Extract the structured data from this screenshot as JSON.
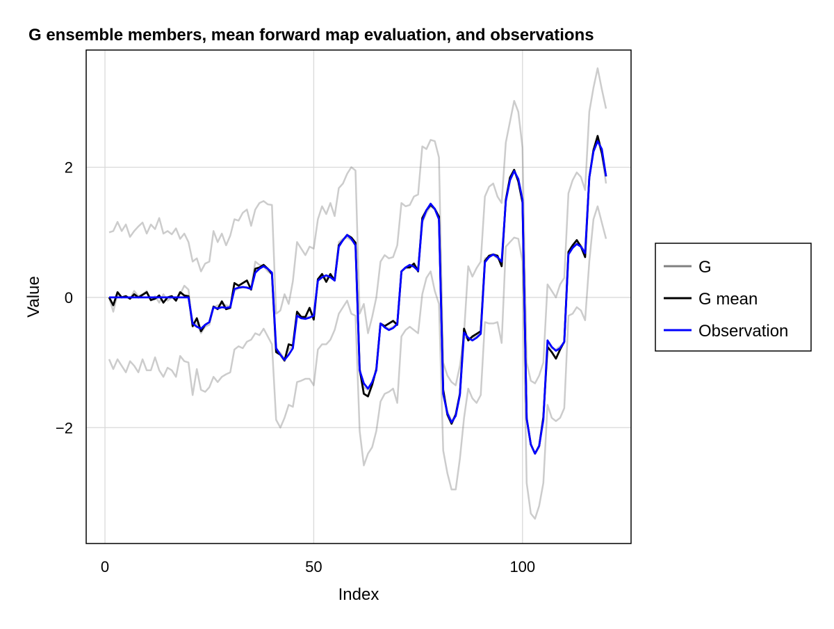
{
  "chart_data": {
    "type": "line",
    "title": "G ensemble members, mean forward map evaluation, and observations",
    "xlabel": "Index",
    "ylabel": "Value",
    "xlim": [
      -4.5,
      126
    ],
    "ylim": [
      -3.78,
      3.8
    ],
    "x_ticks": [
      0,
      50,
      100
    ],
    "y_ticks": [
      -2,
      0,
      2
    ],
    "x_tick_labels": [
      "0",
      "50",
      "100"
    ],
    "y_tick_labels": [
      "−2",
      "0",
      "2"
    ],
    "grid": true,
    "legend_position": "right",
    "legend": [
      {
        "label": "G",
        "color": "#808080"
      },
      {
        "label": "G mean",
        "color": "#000000"
      },
      {
        "label": "Observation",
        "color": "#0000ff"
      }
    ],
    "x": [
      1,
      2,
      3,
      4,
      5,
      6,
      7,
      8,
      9,
      10,
      11,
      12,
      13,
      14,
      15,
      16,
      17,
      18,
      19,
      20,
      21,
      22,
      23,
      24,
      25,
      26,
      27,
      28,
      29,
      30,
      31,
      32,
      33,
      34,
      35,
      36,
      37,
      38,
      39,
      40,
      41,
      42,
      43,
      44,
      45,
      46,
      47,
      48,
      49,
      50,
      51,
      52,
      53,
      54,
      55,
      56,
      57,
      58,
      59,
      60,
      61,
      62,
      63,
      64,
      65,
      66,
      67,
      68,
      69,
      70,
      71,
      72,
      73,
      74,
      75,
      76,
      77,
      78,
      79,
      80,
      81,
      82,
      83,
      84,
      85,
      86,
      87,
      88,
      89,
      90,
      91,
      92,
      93,
      94,
      95,
      96,
      97,
      98,
      99,
      100,
      101,
      102,
      103,
      104,
      105,
      106,
      107,
      108,
      109,
      110,
      111,
      112,
      113,
      114,
      115,
      116,
      117,
      118,
      119,
      120
    ],
    "series": [
      {
        "name": "G",
        "color": "#808080",
        "values": [
          1.0,
          1.02,
          1.16,
          1.02,
          1.12,
          0.93,
          1.02,
          1.09,
          1.15,
          0.98,
          1.12,
          1.05,
          1.22,
          0.98,
          1.02,
          0.97,
          1.06,
          0.9,
          0.98,
          0.85,
          0.55,
          0.6,
          0.4,
          0.52,
          0.55,
          1.02,
          0.85,
          0.98,
          0.8,
          0.95,
          1.2,
          1.18,
          1.3,
          1.35,
          1.1,
          1.35,
          1.45,
          1.48,
          1.43,
          1.42,
          -0.25,
          -0.2,
          0.05,
          -0.1,
          0.25,
          0.85,
          0.75,
          0.65,
          0.78,
          0.75,
          1.2,
          1.4,
          1.28,
          1.45,
          1.25,
          1.68,
          1.75,
          1.9,
          2.0,
          1.95,
          -0.25,
          -0.1,
          -0.55,
          -0.3,
          0.0,
          0.55,
          0.65,
          0.6,
          0.62,
          0.8,
          1.45,
          1.4,
          1.42,
          1.55,
          1.58,
          2.32,
          2.28,
          2.42,
          2.4,
          2.15,
          -1.0,
          -1.2,
          -1.3,
          -1.35,
          -1.05,
          -0.55,
          0.48,
          0.32,
          0.45,
          0.55,
          1.55,
          1.7,
          1.75,
          1.55,
          1.45,
          2.38,
          2.7,
          3.02,
          2.85,
          2.3,
          -1.0,
          -1.28,
          -1.32,
          -1.2,
          -1.0,
          0.2,
          0.1,
          0.0,
          0.2,
          0.3,
          1.6,
          1.8,
          1.92,
          1.85,
          1.65,
          2.85,
          3.22,
          3.52,
          3.2,
          2.9
        ]
      },
      {
        "name": "G",
        "color": "#808080",
        "values": [
          -0.95,
          -1.1,
          -0.95,
          -1.05,
          -1.15,
          -0.98,
          -1.05,
          -1.15,
          -0.95,
          -1.12,
          -1.12,
          -0.92,
          -1.12,
          -1.22,
          -1.08,
          -1.12,
          -1.22,
          -0.9,
          -0.98,
          -1.0,
          -1.5,
          -1.1,
          -1.42,
          -1.45,
          -1.38,
          -1.22,
          -1.3,
          -1.22,
          -1.18,
          -1.15,
          -0.8,
          -0.75,
          -0.78,
          -0.68,
          -0.65,
          -0.55,
          -0.58,
          -0.48,
          -0.6,
          -0.72,
          -1.88,
          -2.0,
          -1.85,
          -1.65,
          -1.68,
          -1.3,
          -1.28,
          -1.25,
          -1.25,
          -1.35,
          -0.8,
          -0.72,
          -0.72,
          -0.65,
          -0.5,
          -0.25,
          -0.15,
          -0.05,
          -0.25,
          -0.28,
          -2.05,
          -2.58,
          -2.4,
          -2.3,
          -2.05,
          -1.6,
          -1.48,
          -1.45,
          -1.4,
          -1.62,
          -0.6,
          -0.5,
          -0.45,
          -0.5,
          -0.55,
          0.05,
          0.3,
          0.4,
          0.1,
          -0.1,
          -2.35,
          -2.7,
          -2.95,
          -2.95,
          -2.48,
          -1.85,
          -1.4,
          -1.55,
          -1.62,
          -1.5,
          -0.38,
          -0.4,
          -0.4,
          -0.38,
          -0.7,
          0.78,
          0.85,
          0.92,
          0.9,
          0.55,
          -2.85,
          -3.32,
          -3.4,
          -3.2,
          -2.85,
          -1.65,
          -1.85,
          -1.9,
          -1.85,
          -1.7,
          -0.28,
          -0.25,
          -0.15,
          -0.2,
          -0.35,
          0.55,
          1.2,
          1.4,
          1.15,
          0.9
        ]
      },
      {
        "name": "G",
        "color": "#808080",
        "values": [
          0.0,
          -0.22,
          0.05,
          0.0,
          0.02,
          -0.02,
          0.1,
          0.02,
          0.05,
          0.1,
          -0.05,
          0.02,
          -0.08,
          0.05,
          -0.05,
          0.0,
          -0.03,
          0.05,
          0.18,
          0.12,
          -0.45,
          -0.4,
          -0.55,
          -0.45,
          -0.42,
          -0.15,
          -0.12,
          -0.1,
          -0.12,
          -0.14,
          0.1,
          0.14,
          0.15,
          0.16,
          0.14,
          0.55,
          0.5,
          0.48,
          0.4,
          0.35,
          -0.8,
          -0.85,
          -0.95,
          -0.8,
          -0.75,
          -0.28,
          -0.3,
          -0.3,
          -0.3,
          -0.28,
          0.25,
          0.3,
          0.3,
          0.32,
          0.28,
          0.85,
          0.9,
          0.92,
          0.88,
          0.85,
          -1.15,
          -1.38,
          -1.42,
          -1.3,
          -1.1,
          -0.4,
          -0.45,
          -0.48,
          -0.45,
          -0.4,
          0.4,
          0.45,
          0.48,
          0.5,
          0.45,
          1.15,
          1.3,
          1.4,
          1.35,
          1.2,
          -1.45,
          -1.75,
          -1.9,
          -1.8,
          -1.5,
          -0.6,
          -0.65,
          -0.62,
          -0.6,
          -0.55,
          0.6,
          0.62,
          0.65,
          0.6,
          0.55,
          1.5,
          1.85,
          1.95,
          1.8,
          1.5,
          -1.85,
          -2.25,
          -2.4,
          -2.3,
          -1.85,
          -0.7,
          -0.78,
          -0.8,
          -0.75,
          -0.7,
          0.7,
          0.78,
          0.85,
          0.8,
          0.7,
          1.85,
          2.28,
          2.42,
          2.2,
          1.75
        ]
      },
      {
        "name": "G mean",
        "color": "#000000",
        "values": [
          0.0,
          -0.12,
          0.08,
          0.0,
          0.02,
          -0.02,
          0.05,
          0.0,
          0.04,
          0.08,
          -0.04,
          -0.02,
          0.03,
          -0.08,
          0.0,
          0.02,
          -0.05,
          0.08,
          0.03,
          0.02,
          -0.44,
          -0.32,
          -0.52,
          -0.42,
          -0.38,
          -0.14,
          -0.18,
          -0.06,
          -0.18,
          -0.16,
          0.22,
          0.18,
          0.22,
          0.26,
          0.12,
          0.44,
          0.46,
          0.5,
          0.44,
          0.36,
          -0.84,
          -0.88,
          -0.97,
          -0.72,
          -0.74,
          -0.22,
          -0.3,
          -0.3,
          -0.16,
          -0.34,
          0.28,
          0.36,
          0.24,
          0.36,
          0.26,
          0.8,
          0.88,
          0.96,
          0.92,
          0.84,
          -1.1,
          -1.48,
          -1.52,
          -1.34,
          -1.1,
          -0.4,
          -0.44,
          -0.4,
          -0.36,
          -0.42,
          0.4,
          0.46,
          0.46,
          0.52,
          0.4,
          1.22,
          1.34,
          1.42,
          1.36,
          1.24,
          -1.42,
          -1.8,
          -1.94,
          -1.8,
          -1.48,
          -0.48,
          -0.66,
          -0.6,
          -0.56,
          -0.52,
          0.56,
          0.64,
          0.66,
          0.64,
          0.48,
          1.5,
          1.84,
          1.96,
          1.78,
          1.46,
          -1.86,
          -2.26,
          -2.4,
          -2.28,
          -1.84,
          -0.76,
          -0.84,
          -0.94,
          -0.8,
          -0.68,
          0.7,
          0.8,
          0.88,
          0.78,
          0.62,
          1.84,
          2.26,
          2.48,
          2.22,
          1.86
        ]
      },
      {
        "name": "Observation",
        "color": "#0000ff",
        "values": [
          0.0,
          0.0,
          0.0,
          0.0,
          0.0,
          0.0,
          0.0,
          0.0,
          0.0,
          0.0,
          0.0,
          0.0,
          0.0,
          0.0,
          0.0,
          0.0,
          0.0,
          0.0,
          0.0,
          0.0,
          -0.4,
          -0.45,
          -0.48,
          -0.42,
          -0.38,
          -0.15,
          -0.17,
          -0.15,
          -0.16,
          -0.15,
          0.13,
          0.15,
          0.16,
          0.15,
          0.13,
          0.38,
          0.44,
          0.48,
          0.44,
          0.38,
          -0.78,
          -0.88,
          -0.96,
          -0.88,
          -0.78,
          -0.28,
          -0.32,
          -0.33,
          -0.31,
          -0.28,
          0.26,
          0.31,
          0.34,
          0.31,
          0.26,
          0.78,
          0.88,
          0.96,
          0.9,
          0.8,
          -1.12,
          -1.32,
          -1.4,
          -1.3,
          -1.12,
          -0.4,
          -0.46,
          -0.5,
          -0.47,
          -0.41,
          0.4,
          0.46,
          0.5,
          0.47,
          0.41,
          1.18,
          1.34,
          1.44,
          1.36,
          1.2,
          -1.48,
          -1.78,
          -1.92,
          -1.82,
          -1.5,
          -0.54,
          -0.62,
          -0.66,
          -0.62,
          -0.56,
          0.54,
          0.62,
          0.66,
          0.62,
          0.55,
          1.48,
          1.8,
          1.94,
          1.82,
          1.5,
          -1.86,
          -2.26,
          -2.4,
          -2.28,
          -1.88,
          -0.66,
          -0.76,
          -0.82,
          -0.78,
          -0.68,
          0.66,
          0.76,
          0.82,
          0.78,
          0.68,
          1.84,
          2.24,
          2.4,
          2.28,
          1.86
        ]
      }
    ]
  }
}
